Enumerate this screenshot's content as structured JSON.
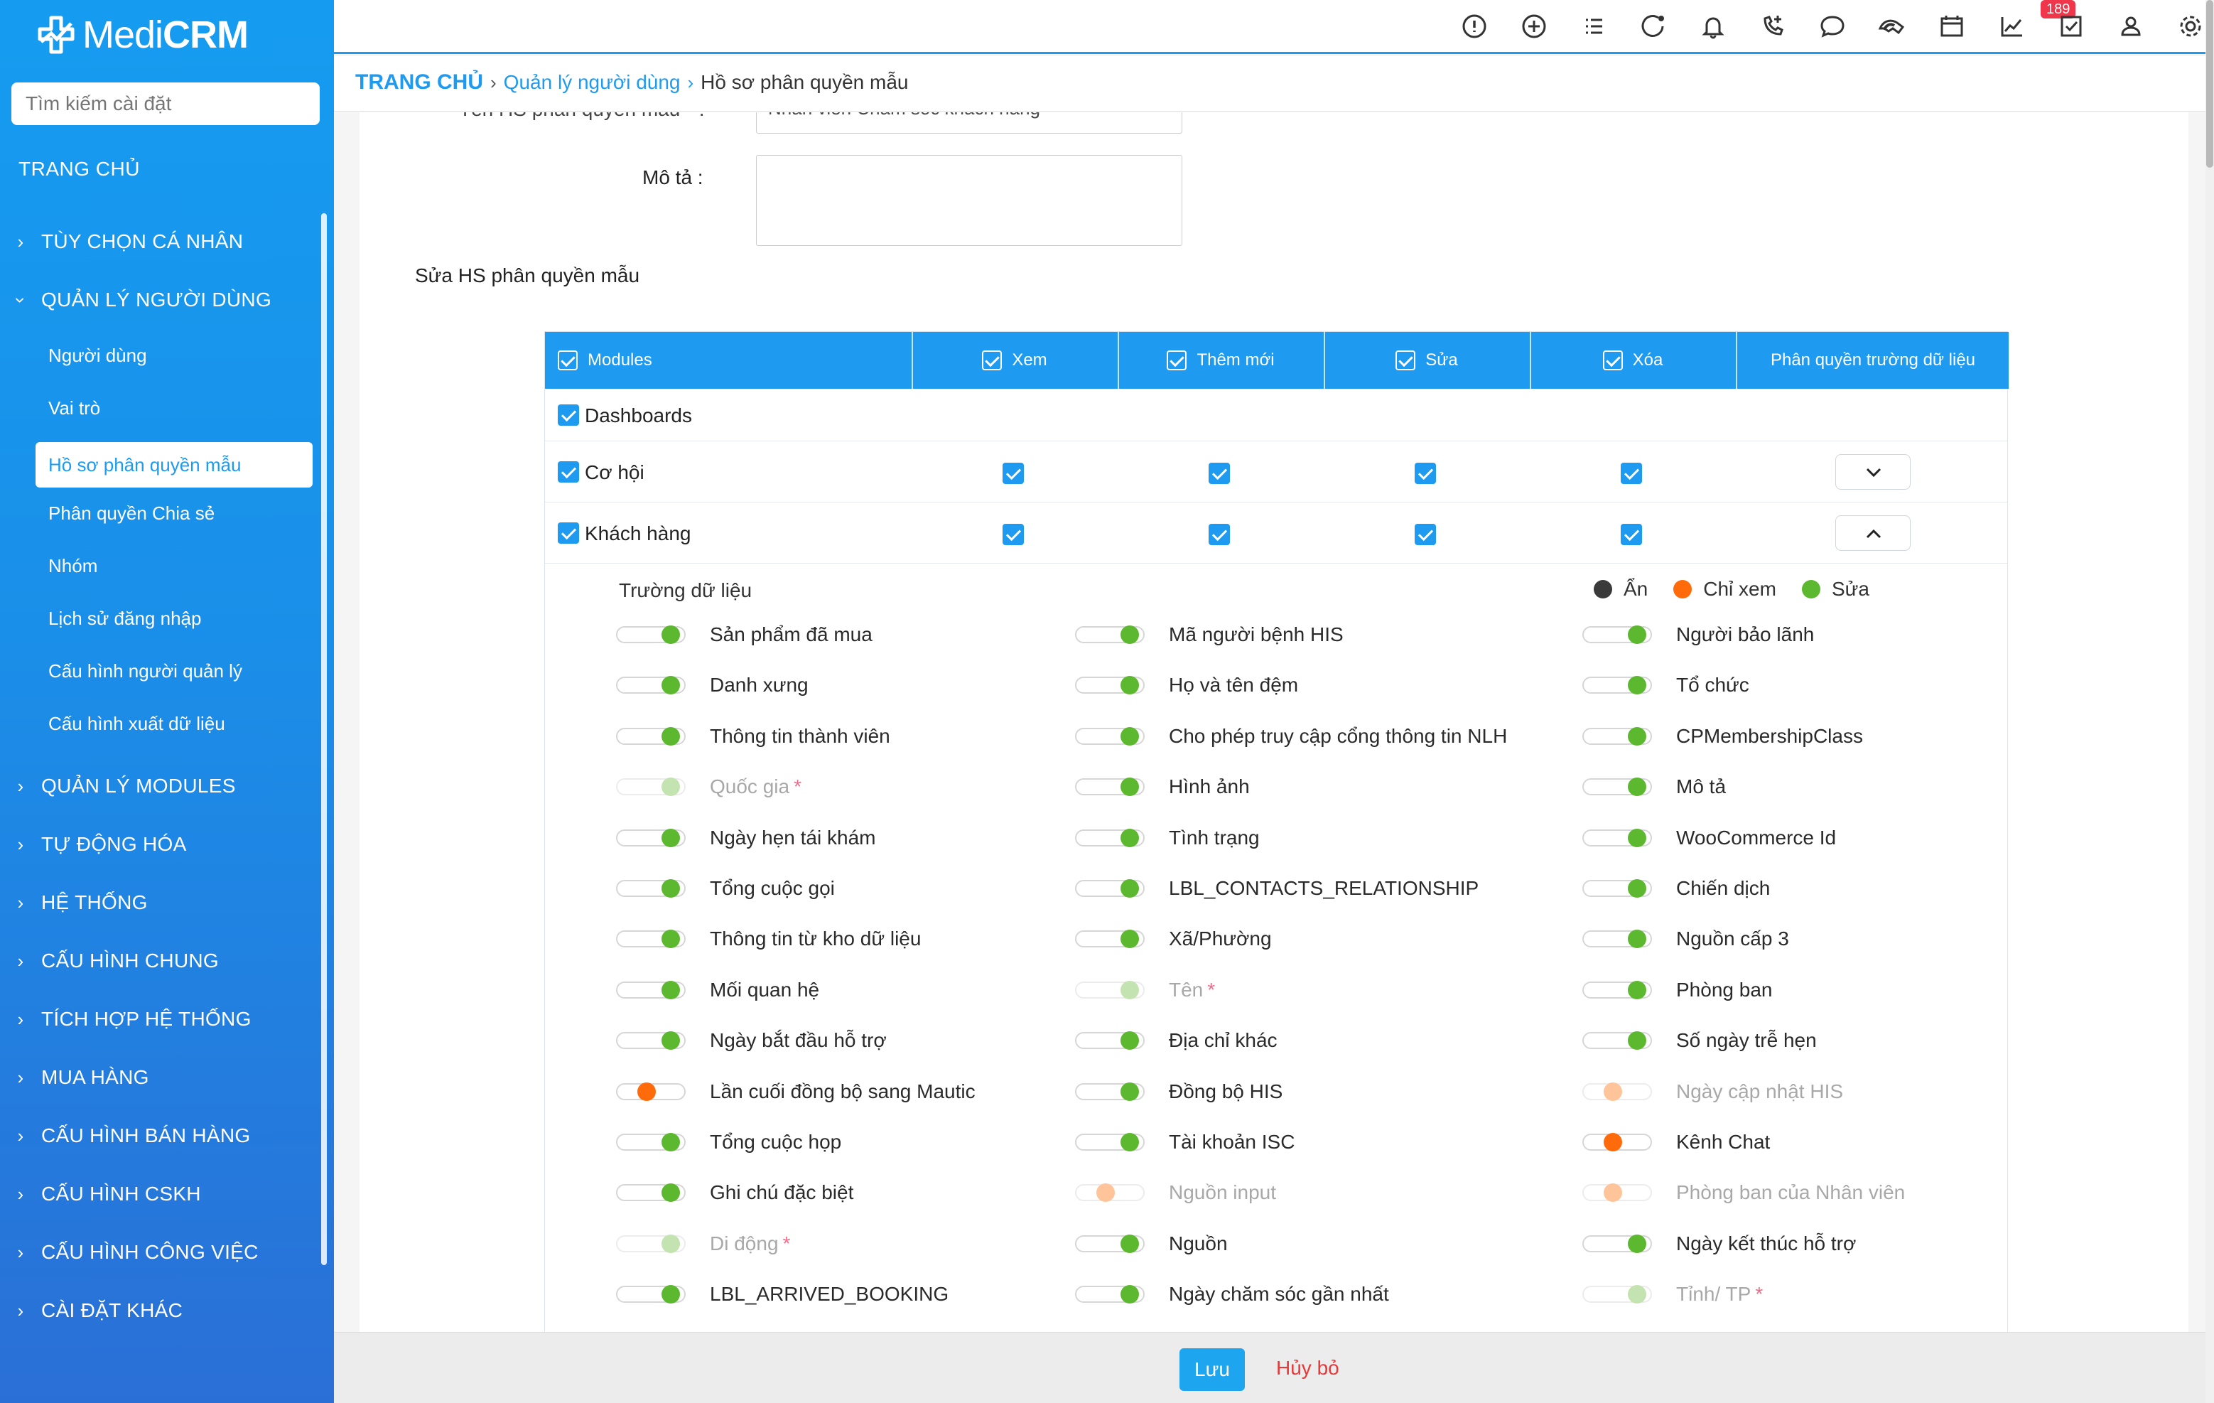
{
  "app": {
    "brand_light": "Medi",
    "brand_bold": "CRM"
  },
  "sidebar": {
    "search_placeholder": "Tìm kiếm cài đặt",
    "home": "TRANG CHỦ",
    "groups": [
      {
        "label": "TÙY CHỌN CÁ NHÂN"
      },
      {
        "label": "QUẢN LÝ NGƯỜI DÙNG"
      },
      {
        "label": "QUẢN LÝ MODULES"
      },
      {
        "label": "TỰ ĐỘNG HÓA"
      },
      {
        "label": "HỆ THỐNG"
      },
      {
        "label": "CẤU HÌNH CHUNG"
      },
      {
        "label": "TÍCH HỢP HỆ THỐNG"
      },
      {
        "label": "MUA HÀNG"
      },
      {
        "label": "CẤU HÌNH BÁN HÀNG"
      },
      {
        "label": "CẤU HÌNH CSKH"
      },
      {
        "label": "CẤU HÌNH CÔNG VIỆC"
      },
      {
        "label": "CÀI ĐẶT KHÁC"
      }
    ],
    "sub_items": [
      {
        "label": "Người dùng"
      },
      {
        "label": "Vai trò"
      },
      {
        "label": "Hồ sơ phân quyền mẫu"
      },
      {
        "label": "Phân quyền Chia sẻ"
      },
      {
        "label": "Nhóm"
      },
      {
        "label": "Lịch sử đăng nhập"
      },
      {
        "label": "Cấu hình người quản lý"
      },
      {
        "label": "Cấu hình xuất dữ liệu"
      }
    ]
  },
  "topbar": {
    "notification_count": "189",
    "icons": [
      "alert-circle-icon",
      "add-circle-icon",
      "list-icon",
      "activity-icon",
      "bell-icon",
      "phone-add-icon",
      "chat-icon",
      "inbox-icon",
      "calendar-icon",
      "chart-icon",
      "task-check-icon",
      "user-icon",
      "settings-icon"
    ]
  },
  "breadcrumb": {
    "home": "TRANG CHỦ",
    "level2": "Quản lý người dùng",
    "current": "Hồ sơ phân quyền mẫu"
  },
  "form": {
    "name_label_clipped": "Tên HS phân quyền mẫu * :",
    "name_value_clipped": "Nhân viên Chăm sóc khách hàng",
    "description_label": "Mô tả :",
    "description_value": "",
    "section_title": "Sửa HS phân quyền mẫu"
  },
  "table": {
    "headers": {
      "modules": "Modules",
      "view": "Xem",
      "create": "Thêm mới",
      "edit": "Sửa",
      "delete": "Xóa",
      "field_perm": "Phân quyền trường dữ liệu"
    },
    "rows": [
      {
        "label": "Dashboards"
      },
      {
        "label": "Cơ hội"
      },
      {
        "label": "Khách hàng"
      }
    ],
    "fields_title": "Trường dữ liệu",
    "legend": {
      "hidden": "Ẩn",
      "readonly": "Chỉ xem",
      "edit": "Sửa",
      "hidden_color": "#3a3a3a",
      "readonly_color": "#ff6a0a",
      "edit_color": "#5cb82f"
    },
    "fields": [
      {
        "label": "Sản phẩm đã mua",
        "state": "edit"
      },
      {
        "label": "Mã người bệnh HIS",
        "state": "edit"
      },
      {
        "label": "Người bảo lãnh",
        "state": "edit"
      },
      {
        "label": "Danh xưng",
        "state": "edit"
      },
      {
        "label": "Họ và tên đệm",
        "state": "edit"
      },
      {
        "label": "Tổ chức",
        "state": "edit"
      },
      {
        "label": "Thông tin thành viên",
        "state": "edit"
      },
      {
        "label": "Cho phép truy cập cổng thông tin NLH",
        "state": "edit"
      },
      {
        "label": "CPMembershipClass",
        "state": "edit"
      },
      {
        "label": "Quốc gia",
        "state": "edit",
        "disabled": true,
        "required": true
      },
      {
        "label": "Hình ảnh",
        "state": "edit"
      },
      {
        "label": "Mô tả",
        "state": "edit"
      },
      {
        "label": "Ngày hẹn tái khám",
        "state": "edit"
      },
      {
        "label": "Tình trạng",
        "state": "edit"
      },
      {
        "label": "WooCommerce Id",
        "state": "edit"
      },
      {
        "label": "Tổng cuộc gọi",
        "state": "edit"
      },
      {
        "label": "LBL_CONTACTS_RELATIONSHIP",
        "state": "edit"
      },
      {
        "label": "Chiến dịch",
        "state": "edit"
      },
      {
        "label": "Thông tin từ kho dữ liệu",
        "state": "edit"
      },
      {
        "label": "Xã/Phường",
        "state": "edit"
      },
      {
        "label": "Nguồn cấp 3",
        "state": "edit"
      },
      {
        "label": "Mối quan hệ",
        "state": "edit"
      },
      {
        "label": "Tên",
        "state": "edit",
        "disabled": true,
        "required": true
      },
      {
        "label": "Phòng ban",
        "state": "edit"
      },
      {
        "label": "Ngày bắt đầu hỗ trợ",
        "state": "edit"
      },
      {
        "label": "Địa chỉ khác",
        "state": "edit"
      },
      {
        "label": "Số ngày trễ hẹn",
        "state": "edit"
      },
      {
        "label": "Lần cuối đồng bộ sang Mautic",
        "state": "readonly"
      },
      {
        "label": "Đồng bộ HIS",
        "state": "edit"
      },
      {
        "label": "Ngày cập nhật HIS",
        "state": "readonly",
        "disabled": true
      },
      {
        "label": "Tổng cuộc họp",
        "state": "edit"
      },
      {
        "label": "Tài khoản ISC",
        "state": "edit"
      },
      {
        "label": "Kênh Chat",
        "state": "readonly"
      },
      {
        "label": "Ghi chú đặc biệt",
        "state": "edit"
      },
      {
        "label": "Nguồn input",
        "state": "readonly",
        "disabled": true
      },
      {
        "label": "Phòng ban của Nhân viên",
        "state": "readonly",
        "disabled": true
      },
      {
        "label": "Di động",
        "state": "edit",
        "disabled": true,
        "required": true
      },
      {
        "label": "Nguồn",
        "state": "edit"
      },
      {
        "label": "Ngày kết thúc hỗ trợ",
        "state": "edit"
      },
      {
        "label": "LBL_ARRIVED_BOOKING",
        "state": "edit"
      },
      {
        "label": "Ngày chăm sóc gần nhất",
        "state": "edit"
      },
      {
        "label": "Tỉnh/ TP",
        "state": "edit",
        "disabled": true,
        "required": true
      }
    ]
  },
  "footer": {
    "save": "Lưu",
    "cancel": "Hủy bỏ"
  }
}
